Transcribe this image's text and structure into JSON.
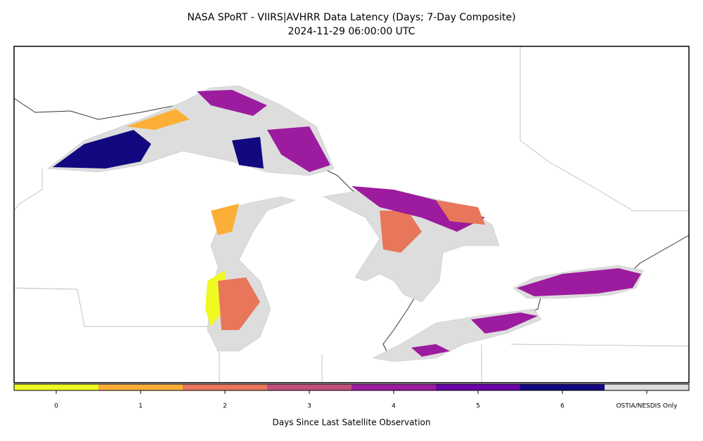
{
  "title": [
    "NASA SPoRT - VIIRS|AVHRR Data Latency (Days; 7-Day Composite)",
    "2024-11-29 06:00:00 UTC"
  ],
  "colorbar": {
    "label": "Days Since Last Satellite Observation",
    "ticks": [
      {
        "label": "0",
        "color": "#f0f921"
      },
      {
        "label": "1",
        "color": "#fcaf36"
      },
      {
        "label": "2",
        "color": "#e8765a"
      },
      {
        "label": "3",
        "color": "#c0507a"
      },
      {
        "label": "4",
        "color": "#9c1b9e"
      },
      {
        "label": "5",
        "color": "#6a00a8"
      },
      {
        "label": "6",
        "color": "#12087f"
      },
      {
        "label": "OSTIA/NESDIS Only",
        "color": "#dddddd"
      }
    ]
  }
}
